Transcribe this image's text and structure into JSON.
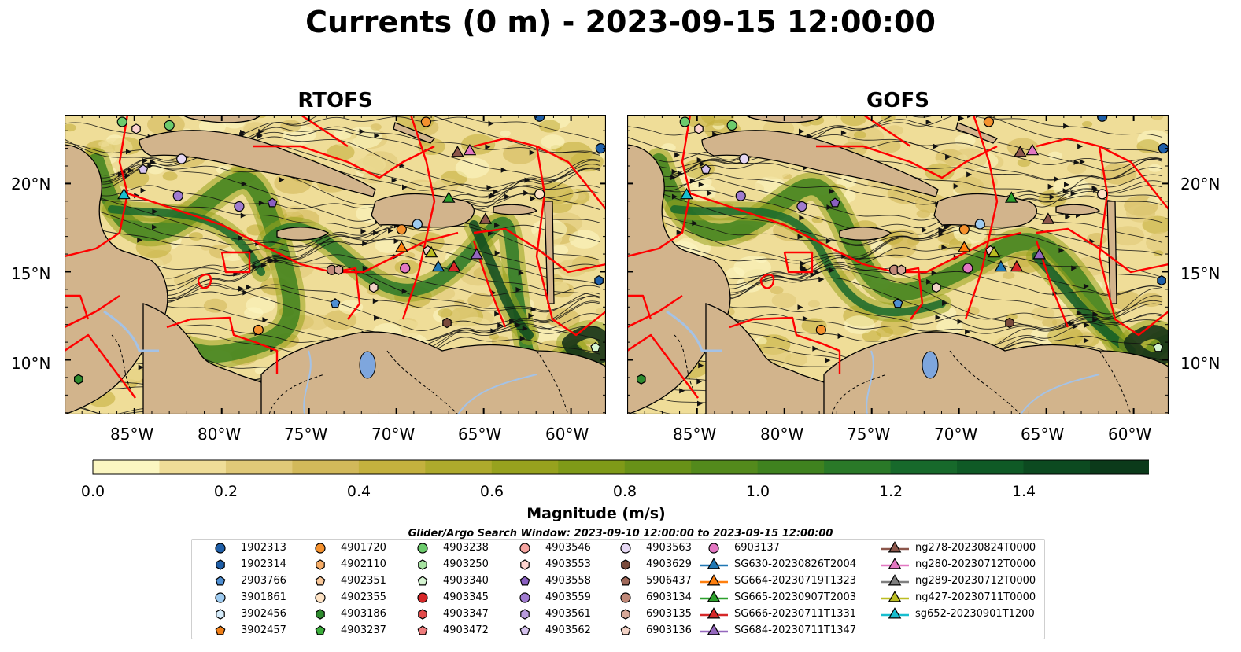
{
  "title": "Currents (0 m) - 2023-09-15 12:00:00",
  "panels": [
    {
      "title": "RTOFS"
    },
    {
      "title": "GOFS"
    }
  ],
  "axes": {
    "lon_ticks": [
      "85°W",
      "80°W",
      "75°W",
      "70°W",
      "65°W",
      "60°W"
    ],
    "lat_ticks": [
      "20°N",
      "15°N",
      "10°N"
    ]
  },
  "colorbar": {
    "label": "Magnitude (m/s)",
    "ticks": [
      "0.0",
      "0.2",
      "0.4",
      "0.6",
      "0.8",
      "1.0",
      "1.2",
      "1.4"
    ],
    "range": [
      0,
      1.6
    ],
    "colors": [
      "#fbf6c1",
      "#efdd98",
      "#e0c978",
      "#d2b95a",
      "#c4b13e",
      "#aeaa2c",
      "#97a21e",
      "#7f9a18",
      "#689118",
      "#538a1c",
      "#3f821f",
      "#2a7928",
      "#17692b",
      "#0f5a26",
      "#0c4a20",
      "#0b3a1a",
      "#0e2c16",
      "#111f12"
    ]
  },
  "colors": {
    "land": "#d2b48c",
    "eez": "#ff0000",
    "river": "#a4c2e6"
  },
  "search_window": "Glider/Argo Search Window: 2023-09-10 12:00:00 to 2023-09-15 12:00:00",
  "legend": [
    {
      "label": "1902313",
      "marker": "circle",
      "color": "#1f5fa8"
    },
    {
      "label": "1902314",
      "marker": "hexagon",
      "color": "#1f5fa8"
    },
    {
      "label": "2903766",
      "marker": "pentagon",
      "color": "#4f8fd2"
    },
    {
      "label": "3901861",
      "marker": "circle",
      "color": "#9ecbf0"
    },
    {
      "label": "3902456",
      "marker": "hexagon",
      "color": "#d6ecfb"
    },
    {
      "label": "3902457",
      "marker": "pentagon",
      "color": "#f07f18"
    },
    {
      "label": "4901720",
      "marker": "circle",
      "color": "#f4912e"
    },
    {
      "label": "4902110",
      "marker": "hexagon",
      "color": "#f7ad67"
    },
    {
      "label": "4902351",
      "marker": "pentagon",
      "color": "#f9c89a"
    },
    {
      "label": "4902355",
      "marker": "circle",
      "color": "#fde2c4"
    },
    {
      "label": "4903186",
      "marker": "hexagon",
      "color": "#2e8b2e"
    },
    {
      "label": "4903237",
      "marker": "pentagon",
      "color": "#3cae3c"
    },
    {
      "label": "4903238",
      "marker": "circle",
      "color": "#6ccb6c"
    },
    {
      "label": "4903250",
      "marker": "hexagon",
      "color": "#a6e3a1"
    },
    {
      "label": "4903340",
      "marker": "pentagon",
      "color": "#d6f5d2"
    },
    {
      "label": "4903345",
      "marker": "circle",
      "color": "#d62728"
    },
    {
      "label": "4903347",
      "marker": "hexagon",
      "color": "#e34a4a"
    },
    {
      "label": "4903472",
      "marker": "pentagon",
      "color": "#ef7c7c"
    },
    {
      "label": "4903546",
      "marker": "circle",
      "color": "#f6a4a0"
    },
    {
      "label": "4903553",
      "marker": "hexagon",
      "color": "#fcd3cf"
    },
    {
      "label": "4903558",
      "marker": "pentagon",
      "color": "#8a5fc1"
    },
    {
      "label": "4903559",
      "marker": "circle",
      "color": "#a07bd0"
    },
    {
      "label": "4903561",
      "marker": "hexagon",
      "color": "#b89bdd"
    },
    {
      "label": "4903562",
      "marker": "pentagon",
      "color": "#d6c3ee"
    },
    {
      "label": "4903563",
      "marker": "circle",
      "color": "#e6d8f4"
    },
    {
      "label": "4903629",
      "marker": "hexagon",
      "color": "#7a4b3c"
    },
    {
      "label": "5906437",
      "marker": "pentagon",
      "color": "#a0695a"
    },
    {
      "label": "6903134",
      "marker": "circle",
      "color": "#c08878"
    },
    {
      "label": "6903135",
      "marker": "hexagon",
      "color": "#d8a898"
    },
    {
      "label": "6903136",
      "marker": "pentagon",
      "color": "#f2d2c6"
    },
    {
      "label": "6903137",
      "marker": "circle",
      "color": "#e377c2"
    },
    {
      "label": "SG630-20230826T2004",
      "marker": "triangle-line",
      "color": "#1f77b4"
    },
    {
      "label": "SG664-20230719T1323",
      "marker": "triangle-line",
      "color": "#ff7f0e"
    },
    {
      "label": "SG665-20230907T2003",
      "marker": "triangle-line",
      "color": "#2ca02c"
    },
    {
      "label": "SG666-20230711T1331",
      "marker": "triangle-line",
      "color": "#d62728"
    },
    {
      "label": "SG684-20230711T1347",
      "marker": "triangle-line",
      "color": "#9467bd"
    },
    {
      "label": "ng278-20230824T0000",
      "marker": "triangle-line",
      "color": "#8c564b"
    },
    {
      "label": "ng280-20230712T0000",
      "marker": "triangle-line",
      "color": "#e377c2"
    },
    {
      "label": "ng289-20230712T0000",
      "marker": "triangle-line",
      "color": "#7f7f7f"
    },
    {
      "label": "ng427-20230711T0000",
      "marker": "triangle-line",
      "color": "#bcbd22"
    },
    {
      "label": "sg652-20230901T1200",
      "marker": "triangle-line",
      "color": "#17becf"
    }
  ]
}
